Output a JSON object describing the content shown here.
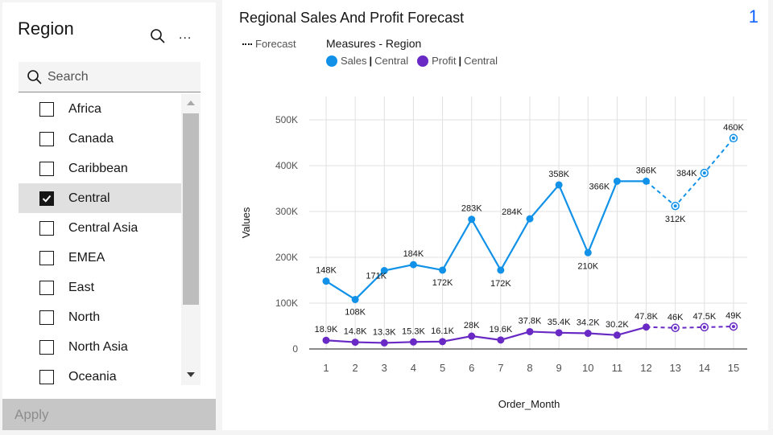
{
  "filter": {
    "title": "Region",
    "search_placeholder": "Search",
    "items": [
      {
        "label": "Africa",
        "checked": false
      },
      {
        "label": "Canada",
        "checked": false
      },
      {
        "label": "Caribbean",
        "checked": false
      },
      {
        "label": "Central",
        "checked": true
      },
      {
        "label": "Central Asia",
        "checked": false
      },
      {
        "label": "EMEA",
        "checked": false
      },
      {
        "label": "East",
        "checked": false
      },
      {
        "label": "North",
        "checked": false
      },
      {
        "label": "North Asia",
        "checked": false
      },
      {
        "label": "Oceania",
        "checked": false
      }
    ],
    "apply_label": "Apply",
    "more_label": "..."
  },
  "page_number": "1",
  "legend": {
    "forecast_label": "Forecast",
    "title": "Measures - Region",
    "items": [
      {
        "measure": "Sales",
        "region": "Central",
        "color": "#1192e8"
      },
      {
        "measure": "Profit",
        "region": "Central",
        "color": "#6929c4"
      }
    ]
  },
  "chart_data": {
    "type": "line",
    "title": "Regional Sales And Profit Forecast",
    "xlabel": "Order_Month",
    "ylabel": "Values",
    "x": [
      1,
      2,
      3,
      4,
      5,
      6,
      7,
      8,
      9,
      10,
      11,
      12,
      13,
      14,
      15
    ],
    "ylim": [
      0,
      550000
    ],
    "yticks": [
      0,
      100000,
      200000,
      300000,
      400000,
      500000
    ],
    "ytick_labels": [
      "0",
      "100K",
      "200K",
      "300K",
      "400K",
      "500K"
    ],
    "forecast_start_index": 12,
    "grid": true,
    "series": [
      {
        "name": "Sales | Central",
        "color": "#1192e8",
        "values": [
          148000,
          108000,
          171000,
          184000,
          172000,
          283000,
          172000,
          284000,
          358000,
          210000,
          366000,
          366000,
          312000,
          384000,
          460000
        ],
        "labels": [
          "148K",
          "108K",
          "171K",
          "184K",
          "172K",
          "283K",
          "172K",
          "284K",
          "358K",
          "210K",
          "366K",
          "366K",
          "312K",
          "384K",
          "460K"
        ]
      },
      {
        "name": "Profit | Central",
        "color": "#6929c4",
        "values": [
          18900,
          14800,
          13300,
          15300,
          16100,
          28000,
          19600,
          37800,
          35400,
          34200,
          30200,
          47800,
          46000,
          47500,
          49000
        ],
        "labels": [
          "18.9K",
          "14.8K",
          "13.3K",
          "15.3K",
          "16.1K",
          "28K",
          "19.6K",
          "37.8K",
          "35.4K",
          "34.2K",
          "30.2K",
          "47.8K",
          "46K",
          "47.5K",
          "49K"
        ]
      }
    ]
  }
}
